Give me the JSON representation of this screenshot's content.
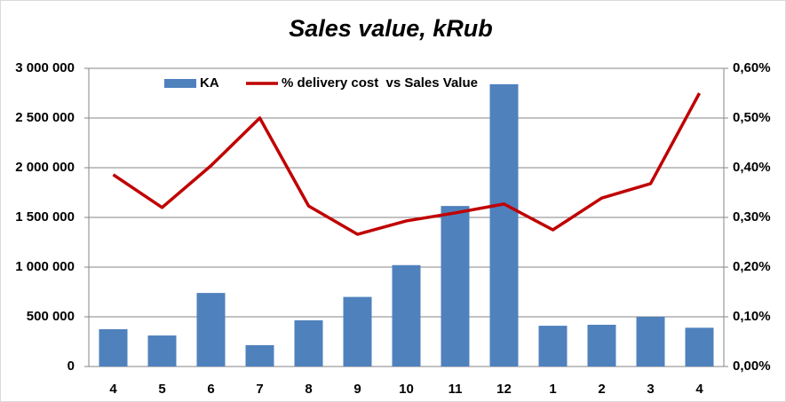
{
  "chart_data": {
    "type": "bar-line",
    "title": "Sales value, kRub",
    "categories": [
      "4",
      "5",
      "6",
      "7",
      "8",
      "9",
      "10",
      "11",
      "12",
      "1",
      "2",
      "3",
      "4"
    ],
    "series": [
      {
        "name": "KA",
        "type": "bar",
        "color": "#4f81bd",
        "values": [
          375000,
          312000,
          740000,
          215000,
          465000,
          700000,
          1020000,
          1615000,
          2840000,
          410000,
          420000,
          500000,
          390000
        ]
      },
      {
        "name": "% delivery cost  vs Sales Value",
        "type": "line",
        "axis": "y2",
        "color": "#c00000",
        "values": [
          0.386,
          0.32,
          0.404,
          0.5,
          0.323,
          0.266,
          0.293,
          0.309,
          0.327,
          0.275,
          0.339,
          0.368,
          0.55
        ]
      }
    ],
    "ylim": [
      0,
      3000000
    ],
    "yticks": [
      0,
      {
        "value": 500000,
        "label": "500 000"
      },
      {
        "value": 1000000,
        "label": "1 000 000"
      },
      {
        "value": 1500000,
        "label": "1 500 000"
      },
      {
        "value": 2000000,
        "label": "2 000 000"
      },
      {
        "value": 2500000,
        "label": "2 500 000"
      },
      {
        "value": 3000000,
        "label": "3 000 000"
      }
    ],
    "y2lim": [
      0,
      0.6
    ],
    "y2ticks": [
      {
        "value": 0,
        "label": "0,00%"
      },
      {
        "value": 0.1,
        "label": "0,10%"
      },
      {
        "value": 0.2,
        "label": "0,20%"
      },
      {
        "value": 0.3,
        "label": "0,30%"
      },
      {
        "value": 0.4,
        "label": "0,40%"
      },
      {
        "value": 0.5,
        "label": "0,50%"
      },
      {
        "value": 0.6,
        "label": "0,60%"
      }
    ],
    "grid": true
  }
}
